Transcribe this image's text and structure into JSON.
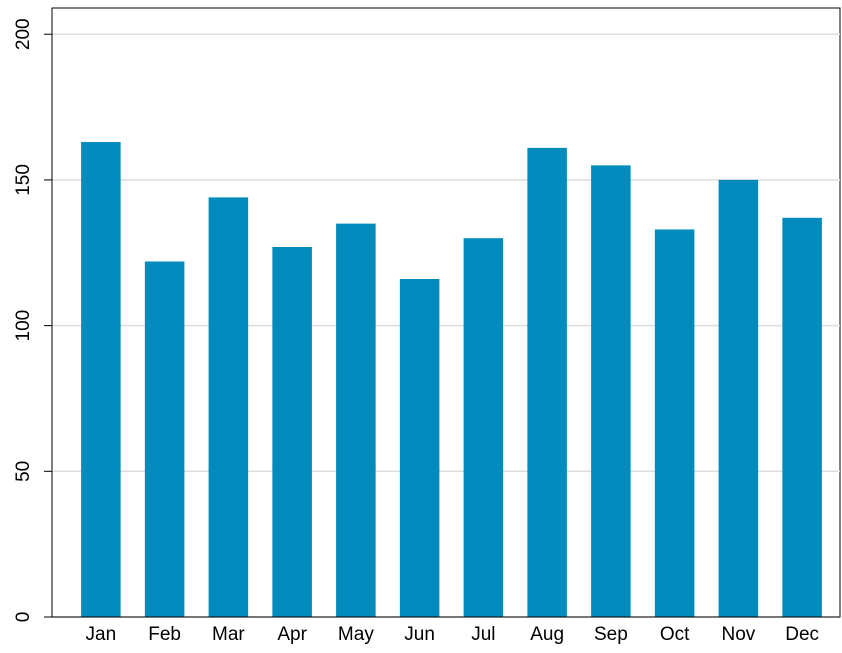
{
  "chart_data": {
    "type": "bar",
    "categories": [
      "Jan",
      "Feb",
      "Mar",
      "Apr",
      "May",
      "Jun",
      "Jul",
      "Aug",
      "Sep",
      "Oct",
      "Nov",
      "Dec"
    ],
    "values": [
      163,
      122,
      144,
      127,
      135,
      116,
      130,
      161,
      155,
      133,
      150,
      137
    ],
    "color": "#008bbc",
    "ylim": [
      0,
      209
    ],
    "yticks": [
      0,
      50,
      100,
      150,
      200
    ],
    "grid": true
  }
}
